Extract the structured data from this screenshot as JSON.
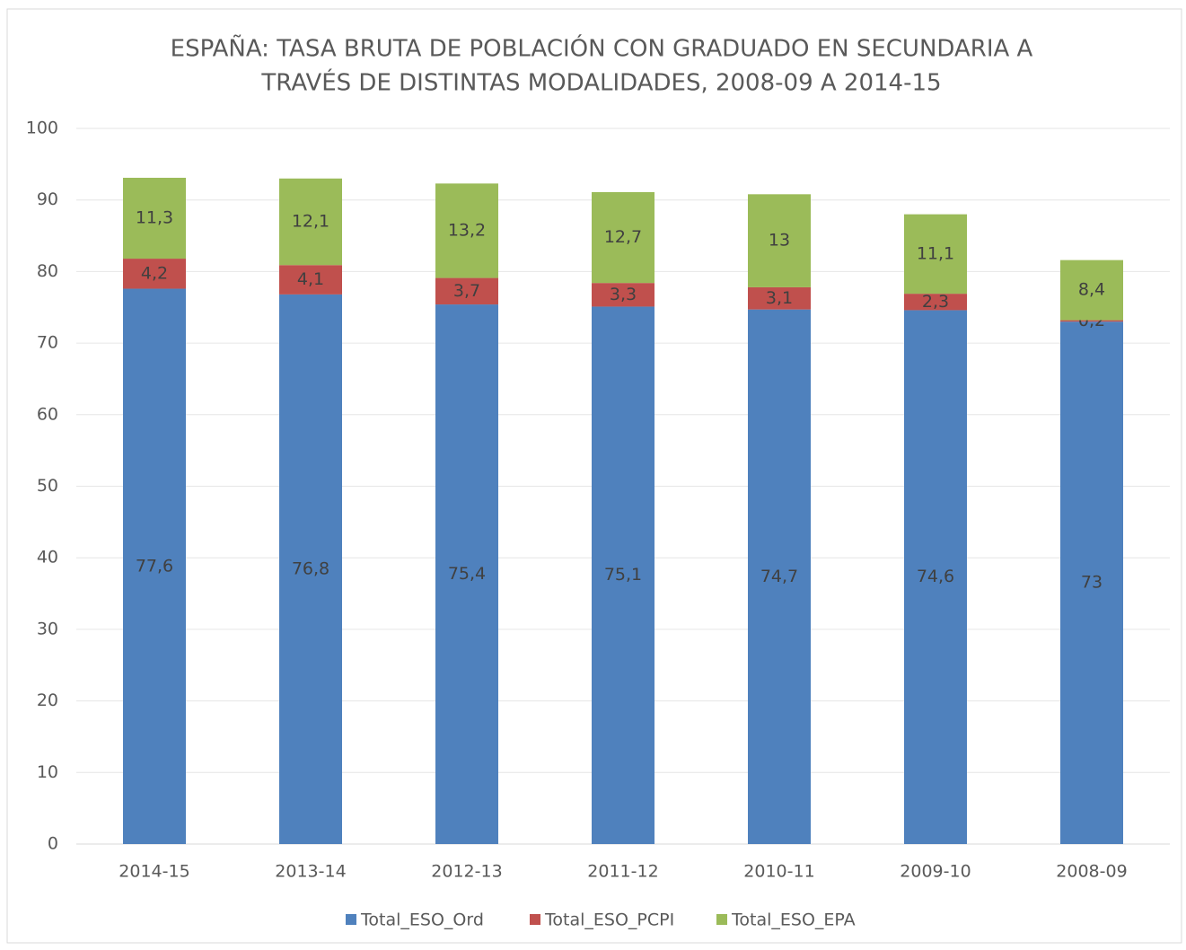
{
  "chart_data": {
    "type": "stacked_bar",
    "title": [
      "ESPAÑA: TASA BRUTA DE POBLACIÓN CON GRADUADO EN SECUNDARIA A",
      "TRAVÉS DE DISTINTAS MODALIDADES, 2008-09 A 2014-15"
    ],
    "categories": [
      "2014-15",
      "2013-14",
      "2012-13",
      "2011-12",
      "2010-11",
      "2009-10",
      "2008-09"
    ],
    "series": [
      {
        "name": "Total_ESO_Ord",
        "color": "#4f81bd",
        "values": [
          77.6,
          76.8,
          75.4,
          75.1,
          74.7,
          74.6,
          73
        ],
        "value_labels": [
          "77,6",
          "76,8",
          "75,4",
          "75,1",
          "74,7",
          "74,6",
          "73"
        ]
      },
      {
        "name": "Total_ESO_PCPI",
        "color": "#c0504d",
        "values": [
          4.2,
          4.1,
          3.7,
          3.3,
          3.1,
          2.3,
          0.2
        ],
        "value_labels": [
          "4,2",
          "4,1",
          "3,7",
          "3,3",
          "3,1",
          "2,3",
          "0,2"
        ]
      },
      {
        "name": "Total_ESO_EPA",
        "color": "#9bbb59",
        "values": [
          11.3,
          12.1,
          13.2,
          12.7,
          13,
          11.1,
          8.4
        ],
        "value_labels": [
          "11,3",
          "12,1",
          "13,2",
          "12,7",
          "13",
          "11,1",
          "8,4"
        ]
      }
    ],
    "ylim": [
      0,
      100
    ],
    "yticks": [
      0,
      10,
      20,
      30,
      40,
      50,
      60,
      70,
      80,
      90,
      100
    ],
    "grid": true,
    "legend": "bottom"
  }
}
